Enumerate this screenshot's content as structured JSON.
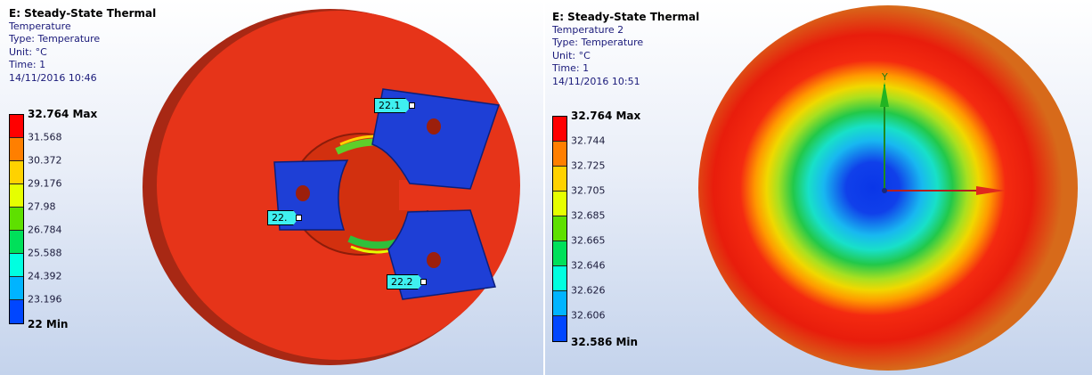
{
  "left": {
    "info": {
      "title": "E: Steady-State Thermal",
      "result": "Temperature",
      "type": "Type: Temperature",
      "unit": "Unit: °C",
      "time": "Time: 1",
      "date": "14/11/2016 10:46"
    },
    "legend": {
      "labels": [
        "32.764 Max",
        "31.568",
        "30.372",
        "29.176",
        "27.98",
        "26.784",
        "25.588",
        "24.392",
        "23.196",
        "22 Min"
      ],
      "colors": [
        "#ff0000",
        "#ff7f00",
        "#ffd200",
        "#e6ff00",
        "#5ee000",
        "#00e05a",
        "#00ffe0",
        "#00b4ff",
        "#0046ff"
      ]
    },
    "probes": [
      "22.1",
      "22.",
      "22.2"
    ]
  },
  "right": {
    "info": {
      "title": "E: Steady-State Thermal",
      "result": "Temperature 2",
      "type": "Type: Temperature",
      "unit": "Unit: °C",
      "time": "Time: 1",
      "date": "14/11/2016 10:51"
    },
    "legend": {
      "labels": [
        "32.764 Max",
        "32.744",
        "32.725",
        "32.705",
        "32.685",
        "32.665",
        "32.646",
        "32.626",
        "32.606",
        "32.586 Min"
      ],
      "colors": [
        "#ff0000",
        "#ff7f00",
        "#ffd200",
        "#e6ff00",
        "#5ee000",
        "#00e05a",
        "#00ffe0",
        "#00b4ff",
        "#0046ff"
      ]
    },
    "axis_label": "Y"
  },
  "theme": {
    "disc_red": "#e83a1c",
    "disc_red_dark": "#b52a14",
    "jaw_blue": "#1e3fd6",
    "cool_blue": "#1438e8"
  }
}
